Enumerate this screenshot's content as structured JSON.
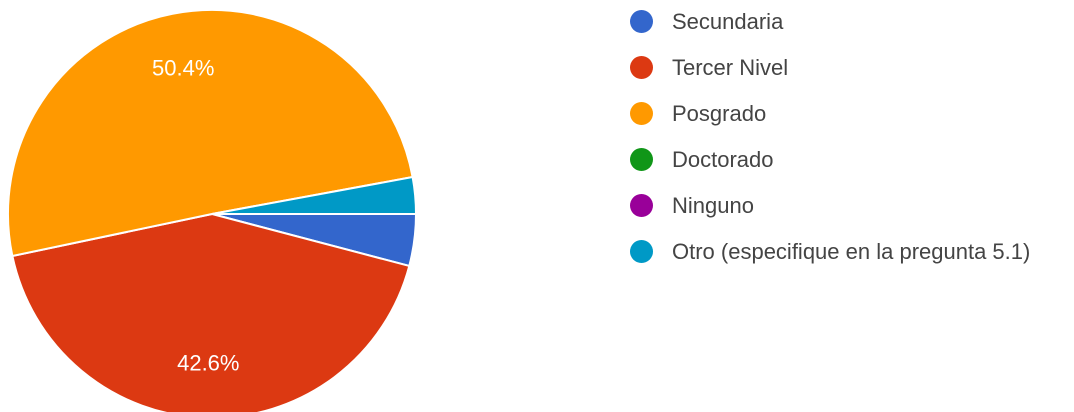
{
  "chart_data": {
    "type": "pie",
    "series": [
      {
        "name": "Secundaria",
        "value": 4.1,
        "color": "#3366cc"
      },
      {
        "name": "Tercer Nivel",
        "value": 42.6,
        "color": "#dc3912",
        "label": "42.6%"
      },
      {
        "name": "Posgrado",
        "value": 50.4,
        "color": "#ff9900",
        "label": "50.4%"
      },
      {
        "name": "Doctorado",
        "value": 0,
        "color": "#109618"
      },
      {
        "name": "Ninguno",
        "value": 0,
        "color": "#990099"
      },
      {
        "name": "Otro (especifique en la pregunta 5.1)",
        "value": 2.9,
        "color": "#0099c6"
      }
    ],
    "legend_position": "right"
  }
}
